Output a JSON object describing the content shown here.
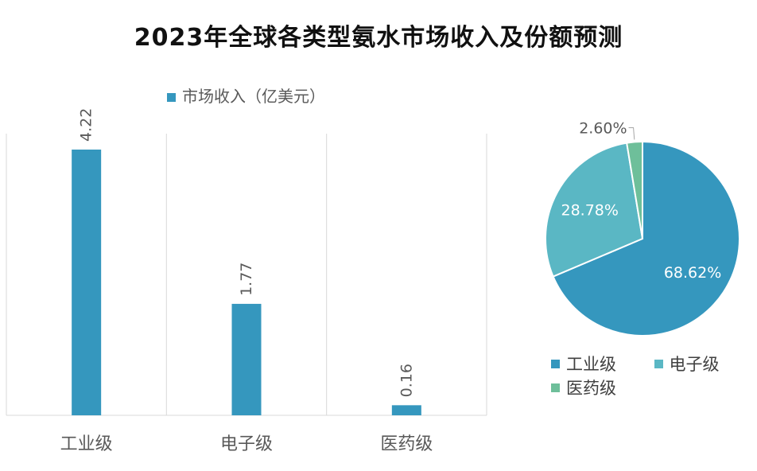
{
  "colors": {
    "industrial": "#3597be",
    "electronic": "#5ab7c4",
    "medical": "#6ebf9a",
    "grid": "#d9d9d9",
    "label": "#595959"
  },
  "chart_data": [
    {
      "type": "bar",
      "title": "2023年全球各类型氨水市场收入及份额预测",
      "categories": [
        "工业级",
        "电子级",
        "医药级"
      ],
      "series": [
        {
          "name": "市场收入（亿美元）",
          "values": [
            4.22,
            1.77,
            0.16
          ],
          "labels": [
            "4.22",
            "1.77",
            "0.16"
          ]
        }
      ],
      "ylim": [
        0,
        4.22
      ],
      "grid": false,
      "legend": "top"
    },
    {
      "type": "pie",
      "categories": [
        "工业级",
        "电子级",
        "医药级"
      ],
      "values": [
        68.62,
        28.78,
        2.6
      ],
      "labels": [
        "68.62%",
        "28.78%",
        "2.60%"
      ],
      "legend": "bottom"
    }
  ]
}
